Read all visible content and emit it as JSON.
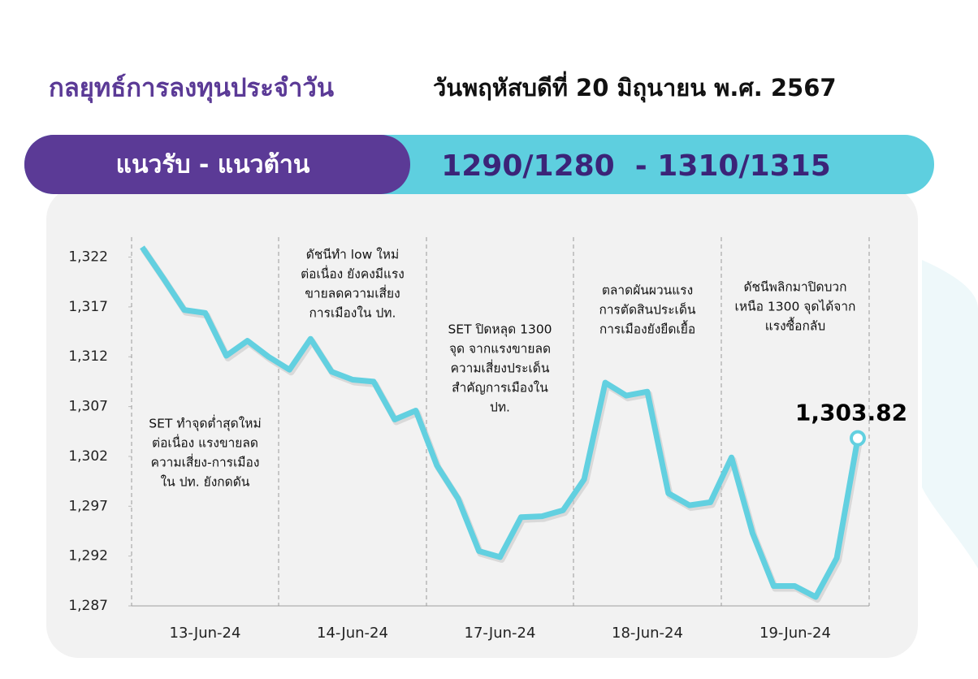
{
  "header": {
    "title": "กลยุทธ์การลงทุนประจำวัน",
    "date": "วันพฤหัสบดีที่ 20 มิถุนายน พ.ศ. 2567"
  },
  "banner": {
    "label": "แนวรับ - แนวต้าน",
    "value": "1290/1280  - 1310/1315"
  },
  "chart_data": {
    "type": "line",
    "color": "#62d0e0",
    "categories": [
      "13-Jun-24",
      "14-Jun-24",
      "17-Jun-24",
      "18-Jun-24",
      "19-Jun-24"
    ],
    "values": [
      [
        1323.0,
        1319.9,
        1316.7,
        1316.4,
        1312.1,
        1313.6,
        1312.0,
        1310.7
      ],
      [
        1313.8,
        1310.5,
        1309.7,
        1309.5,
        1305.7,
        1306.6
      ],
      [
        1301.1,
        1297.8,
        1292.5,
        1291.9,
        1295.9,
        1296.0,
        1296.6,
        1299.7
      ],
      [
        1309.4,
        1308.1,
        1308.5,
        1298.3,
        1297.1,
        1297.4,
        1301.9
      ],
      [
        1294.3,
        1289.0,
        1289.0,
        1287.9,
        1291.8,
        1303.82
      ]
    ],
    "value_labels": [
      [
        null,
        null,
        null,
        null,
        null,
        null,
        null,
        null
      ],
      [
        null,
        null,
        null,
        null,
        null,
        null
      ],
      [
        null,
        null,
        null,
        null,
        null,
        null,
        null,
        null
      ],
      [
        null,
        null,
        null,
        null,
        null,
        null,
        null
      ],
      [
        null,
        null,
        null,
        null,
        null,
        "1,303.82"
      ]
    ],
    "ylim": [
      1287,
      1324
    ],
    "yticks": [
      {
        "value": 1287,
        "label": "1,287"
      },
      {
        "value": 1292,
        "label": "1,292"
      },
      {
        "value": 1297,
        "label": "1,297"
      },
      {
        "value": 1302,
        "label": "1,302"
      },
      {
        "value": 1307,
        "label": "1,307"
      },
      {
        "value": 1312,
        "label": "1,312"
      },
      {
        "value": 1317,
        "label": "1,317"
      },
      {
        "value": 1322,
        "label": "1,322"
      }
    ],
    "annotations": [
      [
        "SET ทำจุดต่ำสุดใหม่",
        "ต่อเนื่อง แรงขายลด",
        "ความเสี่ยง-การเมือง",
        "ใน ปท. ยังกดดัน"
      ],
      [
        "ดัชนีทำ low ใหม่",
        "ต่อเนื่อง ยังคงมีแรง",
        "ขายลดความเสี่ยง",
        "การเมืองใน ปท."
      ],
      [
        "SET ปิดหลุด 1300",
        "จุด จากแรงขายลด",
        "ความเสี่ยงประเด็น",
        "สำคัญการเมืองใน",
        "ปท."
      ],
      [
        "ตลาดผันผวนแรง",
        "การตัดสินประเด็น",
        "การเมืองยังยืดเยื้อ"
      ],
      [
        "ดัชนีพลิกมาปิดบวก",
        "เหนือ 1300 จุดได้จาก",
        "แรงซื้อกลับ"
      ]
    ]
  }
}
